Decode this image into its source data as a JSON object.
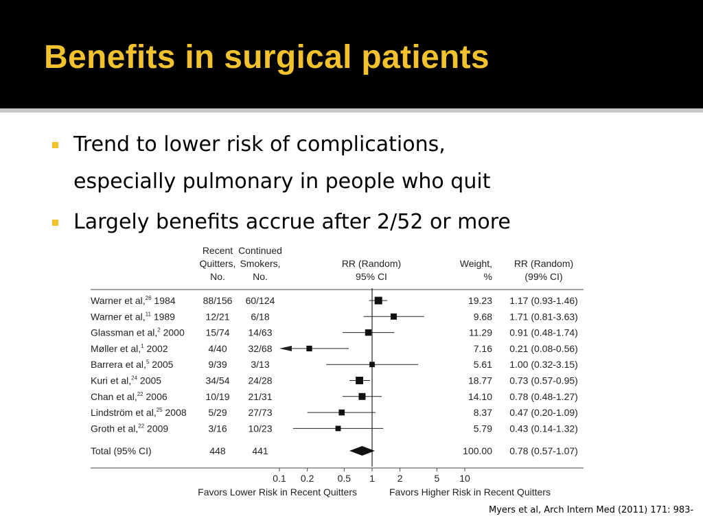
{
  "slide": {
    "title": "Benefits in surgical patients",
    "bullets": [
      {
        "lines": [
          "Trend to lower risk of complications,",
          "especially pulmonary in people who quit"
        ]
      },
      {
        "lines": [
          "Largely benefits accrue after 2/52 or more"
        ]
      }
    ],
    "citation": "Myers et al, Arch Intern Med (2011) 171: 983-",
    "colors": {
      "header_bg": "#000000",
      "title": "#f2c12e",
      "bullet": "#f2c12e",
      "rule": "#c8c8c8"
    }
  },
  "chart_data": {
    "type": "forest",
    "columns": {
      "quitters": [
        "Recent",
        "Quitters,",
        "No."
      ],
      "smokers": [
        "Continued",
        "Smokers,",
        "No."
      ],
      "rr": [
        "RR (Random)",
        "95% CI"
      ],
      "weight": [
        "Weight,",
        "%"
      ],
      "rr99": [
        "RR (Random)",
        "(99% CI)"
      ]
    },
    "studies": [
      {
        "study": "Warner et al,",
        "ref": "26",
        "year": "1984",
        "quitters": "88/156",
        "smokers": "60/124",
        "rr": 1.17,
        "lo": 0.93,
        "hi": 1.46,
        "weight": "19.23",
        "ci_text": "1.17 (0.93-1.46)"
      },
      {
        "study": "Warner et al,",
        "ref": "11",
        "year": "1989",
        "quitters": "12/21",
        "smokers": "6/18",
        "rr": 1.71,
        "lo": 0.81,
        "hi": 3.63,
        "weight": "9.68",
        "ci_text": "1.71 (0.81-3.63)"
      },
      {
        "study": "Glassman et al,",
        "ref": "2",
        "year": "2000",
        "quitters": "15/74",
        "smokers": "14/63",
        "rr": 0.91,
        "lo": 0.48,
        "hi": 1.74,
        "weight": "11.29",
        "ci_text": "0.91 (0.48-1.74)"
      },
      {
        "study": "Møller et al,",
        "ref": "1",
        "year": "2002",
        "quitters": "4/40",
        "smokers": "32/68",
        "rr": 0.21,
        "lo": 0.08,
        "hi": 0.56,
        "weight": "7.16",
        "ci_text": "0.21 (0.08-0.56)"
      },
      {
        "study": "Barrera et al,",
        "ref": "5",
        "year": "2005",
        "quitters": "9/39",
        "smokers": "3/13",
        "rr": 1.0,
        "lo": 0.32,
        "hi": 3.15,
        "weight": "5.61",
        "ci_text": "1.00 (0.32-3.15)"
      },
      {
        "study": "Kuri et al,",
        "ref": "24",
        "year": "2005",
        "quitters": "34/54",
        "smokers": "24/28",
        "rr": 0.73,
        "lo": 0.57,
        "hi": 0.95,
        "weight": "18.77",
        "ci_text": "0.73 (0.57-0.95)"
      },
      {
        "study": "Chan et al,",
        "ref": "22",
        "year": "2006",
        "quitters": "10/19",
        "smokers": "21/31",
        "rr": 0.78,
        "lo": 0.48,
        "hi": 1.27,
        "weight": "14.10",
        "ci_text": "0.78 (0.48-1.27)"
      },
      {
        "study": "Lindström et al,",
        "ref": "25",
        "year": "2008",
        "quitters": "5/29",
        "smokers": "27/73",
        "rr": 0.47,
        "lo": 0.2,
        "hi": 1.09,
        "weight": "8.37",
        "ci_text": "0.47 (0.20-1.09)"
      },
      {
        "study": "Groth et al,",
        "ref": "22",
        "year": "2009",
        "quitters": "3/16",
        "smokers": "10/23",
        "rr": 0.43,
        "lo": 0.14,
        "hi": 1.32,
        "weight": "5.79",
        "ci_text": "0.43 (0.14-1.32)"
      }
    ],
    "total": {
      "label": "Total (95% CI)",
      "quitters": "448",
      "smokers": "441",
      "rr": 0.78,
      "lo": 0.57,
      "hi": 1.07,
      "weight": "100.00",
      "ci_text": "0.78 (0.57-1.07)"
    },
    "x_scale": "log",
    "x_ticks": [
      {
        "value": 0.1,
        "label": "0.1"
      },
      {
        "value": 0.2,
        "label": "0.2"
      },
      {
        "value": 0.5,
        "label": "0.5"
      },
      {
        "value": 1,
        "label": "1"
      },
      {
        "value": 2,
        "label": "2"
      },
      {
        "value": 5,
        "label": "5"
      },
      {
        "value": 10,
        "label": "10"
      }
    ],
    "xlim": [
      0.1,
      10
    ],
    "null_line": 1,
    "favors_left": "Favors Lower Risk in Recent Quitters",
    "favors_right": "Favors Higher Risk in Recent Quitters"
  }
}
